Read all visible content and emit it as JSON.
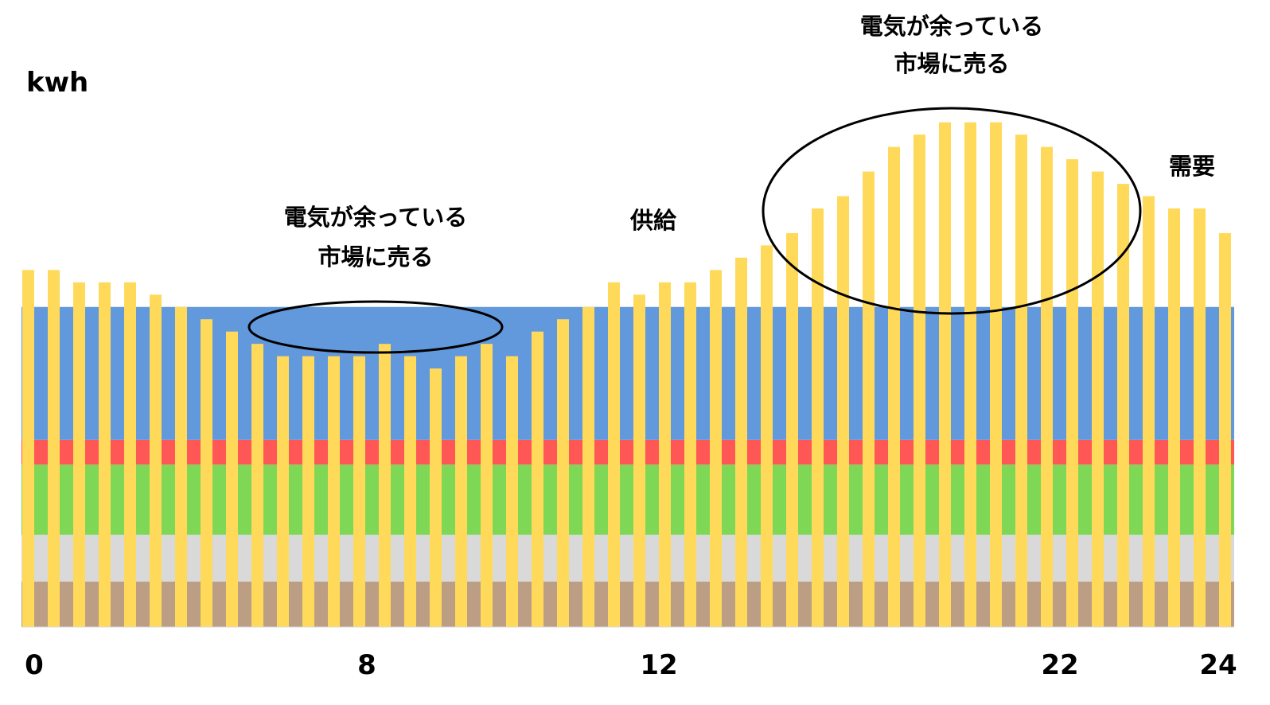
{
  "chart_data": {
    "type": "bar",
    "ylabel": "kwh",
    "x_tick_labels": [
      "0",
      "8",
      "12",
      "22",
      "24"
    ],
    "demand_series": {
      "name": "需要",
      "color": "#FFDA5A",
      "values": [
        29,
        29,
        28,
        28,
        28,
        27,
        26,
        25,
        24,
        23,
        22,
        22,
        22,
        22,
        23,
        22,
        21,
        22,
        23,
        22,
        24,
        25,
        26,
        28,
        27,
        28,
        28,
        29,
        30,
        31,
        32,
        34,
        35,
        37,
        39,
        40,
        41,
        41,
        41,
        40,
        39,
        38,
        37,
        36,
        35,
        34,
        34,
        32
      ]
    },
    "supply_label": "供給",
    "supply_layers": [
      {
        "color": "#BC9E84",
        "from": 0,
        "to": 3.7
      },
      {
        "color": "#D9D9D9",
        "from": 3.7,
        "to": 7.5
      },
      {
        "color": "#7FD855",
        "from": 7.5,
        "to": 13.2
      },
      {
        "color": "#FF5656",
        "from": 13.2,
        "to": 15.2
      },
      {
        "color": "#6299DC",
        "from": 15.2,
        "to": 26
      }
    ],
    "ylim": [
      0,
      43.5
    ]
  },
  "annotations": [
    {
      "line1": "電気が余っている",
      "line2": "市場に売る"
    },
    {
      "line1": "電気が余っている",
      "line2": "市場に売る"
    }
  ],
  "demand_label": "需要"
}
